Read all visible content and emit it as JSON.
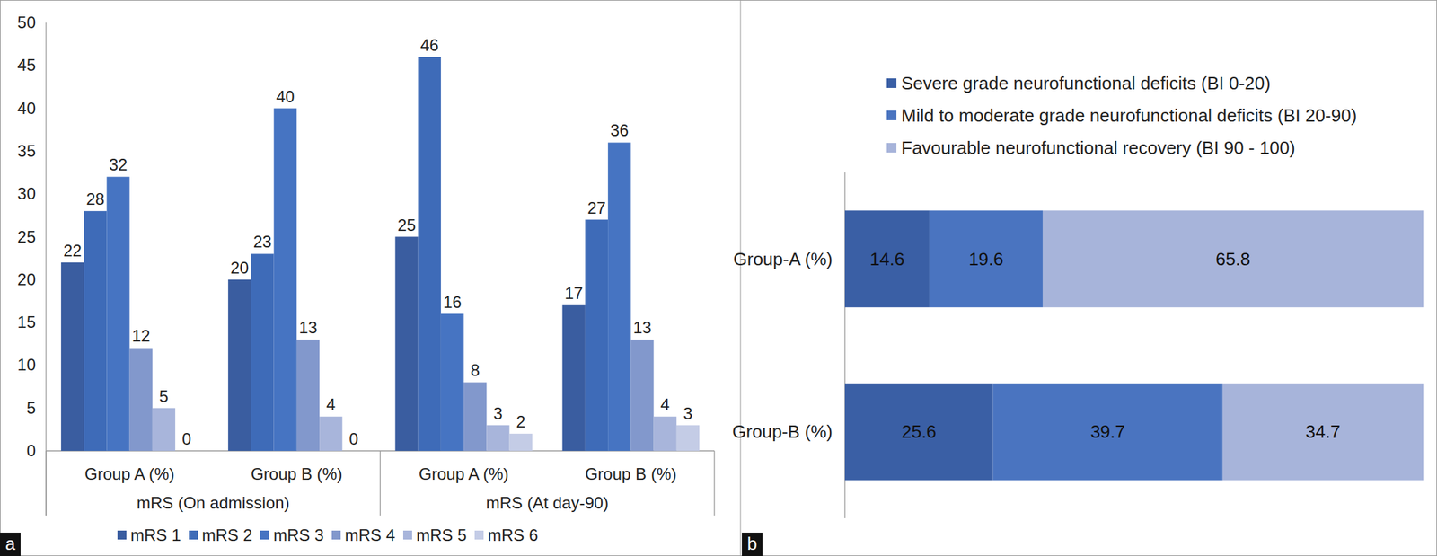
{
  "chart_data": [
    {
      "type": "bar",
      "categories": [
        "Group A (%)",
        "Group B (%)",
        "Group A (%)",
        "Group B (%)"
      ],
      "group_labels": [
        "mRS (On admission)",
        "mRS (At day-90)"
      ],
      "series": [
        {
          "name": "mRS 1",
          "color": "#3a5da0",
          "values": [
            22,
            20,
            25,
            17
          ]
        },
        {
          "name": "mRS 2",
          "color": "#3e6bb8",
          "values": [
            28,
            23,
            46,
            27
          ]
        },
        {
          "name": "mRS 3",
          "color": "#4674c2",
          "values": [
            32,
            40,
            16,
            36
          ]
        },
        {
          "name": "mRS 4",
          "color": "#8298cc",
          "values": [
            12,
            13,
            8,
            13
          ]
        },
        {
          "name": "mRS 5",
          "color": "#a8b5db",
          "values": [
            5,
            4,
            3,
            4
          ]
        },
        {
          "name": "mRS 6",
          "color": "#c4cce6",
          "values": [
            0,
            0,
            2,
            3
          ]
        }
      ],
      "ylim": [
        0,
        50
      ],
      "yticks": [
        0,
        5,
        10,
        15,
        20,
        25,
        30,
        35,
        40,
        45,
        50
      ],
      "grid": false,
      "data_labels": true,
      "legend": "bottom",
      "annotations": [
        "a"
      ]
    },
    {
      "type": "bar",
      "orientation": "horizontal",
      "stacked": true,
      "categories": [
        "Group-A (%)",
        "Group-B (%)"
      ],
      "series": [
        {
          "name": "Severe grade neurofunctional deficits (BI 0-20)",
          "color": "#3a5fa5",
          "values": [
            14.6,
            25.6
          ]
        },
        {
          "name": "Mild to moderate grade neurofunctional deficits (BI 20-90)",
          "color": "#4a74c0",
          "values": [
            19.6,
            39.7
          ]
        },
        {
          "name": "Favourable neurofunctional recovery (BI 90 - 100)",
          "color": "#a7b4da",
          "values": [
            65.8,
            34.7
          ]
        }
      ],
      "xlim": [
        0,
        100
      ],
      "tick_labels": "y",
      "data_labels": true,
      "legend": "top",
      "annotations": [
        "b"
      ]
    }
  ]
}
